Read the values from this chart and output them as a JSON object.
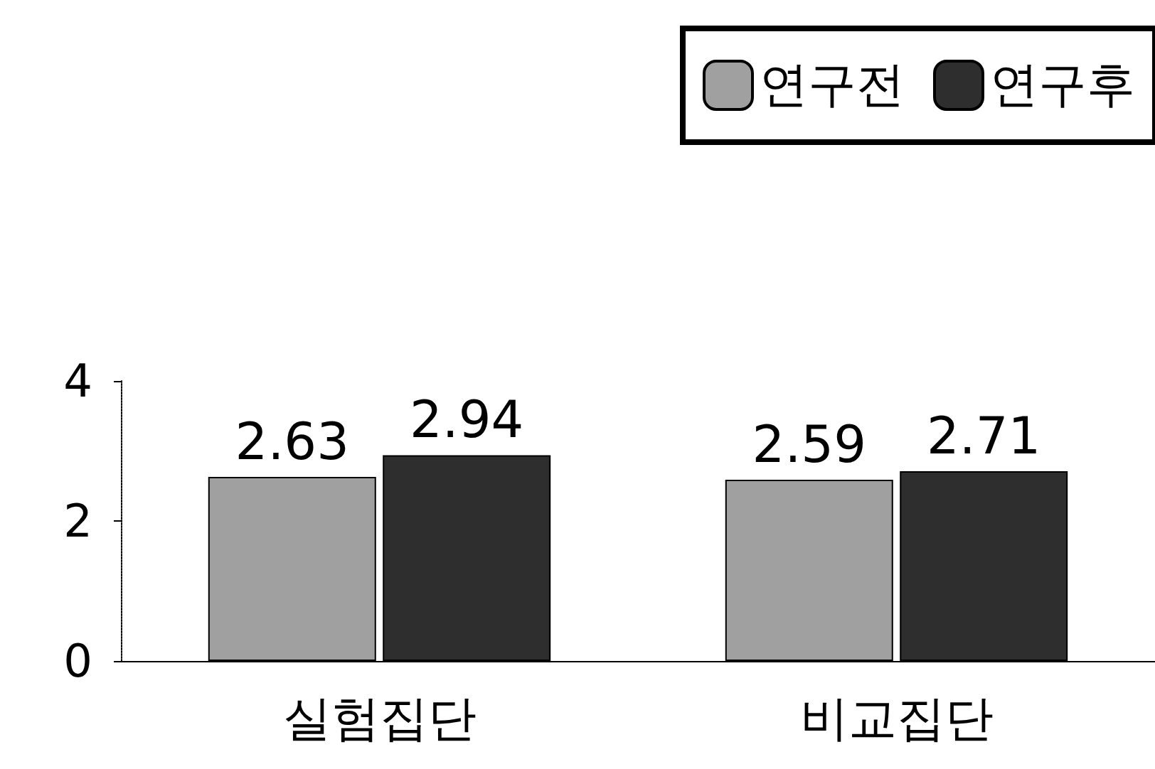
{
  "chart_data": {
    "type": "bar",
    "categories": [
      "실험집단",
      "비교집단"
    ],
    "series": [
      {
        "name": "연구전",
        "color": "#a0a0a0",
        "values": [
          2.63,
          2.59
        ]
      },
      {
        "name": "연구후",
        "color": "#2e2e2e",
        "values": [
          2.94,
          2.71
        ]
      }
    ],
    "ylim": [
      0,
      4
    ],
    "yticks": [
      0,
      2,
      4
    ],
    "grid": false,
    "legend": "top right",
    "data_labels": true
  }
}
